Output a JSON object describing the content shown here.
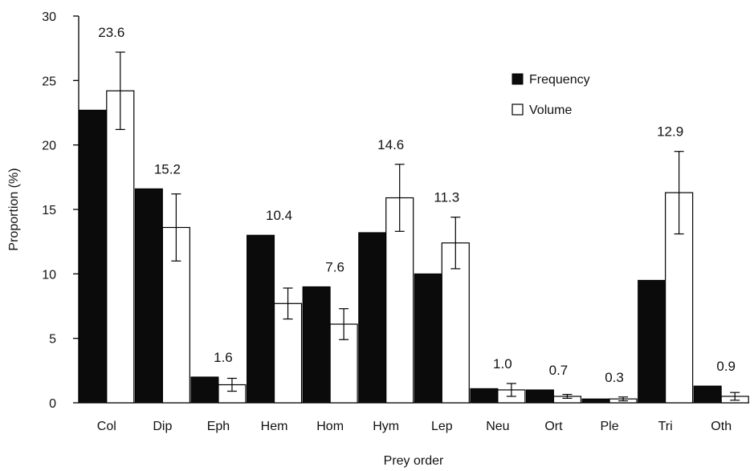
{
  "chart_data": {
    "type": "bar",
    "title": "",
    "xlabel": "Prey order",
    "ylabel": "Proportion (%)",
    "ylim": [
      0,
      30
    ],
    "yticks": [
      0,
      5,
      10,
      15,
      20,
      25,
      30
    ],
    "grid": false,
    "legend_position": "top-right",
    "categories": [
      "Col",
      "Dip",
      "Eph",
      "Hem",
      "Hom",
      "Hym",
      "Lep",
      "Neu",
      "Ort",
      "Ple",
      "Tri",
      "Oth"
    ],
    "series": [
      {
        "name": "Frequency",
        "style": "filled",
        "color": "#0b0b0b",
        "values": [
          22.7,
          16.6,
          2.0,
          13.0,
          9.0,
          13.2,
          10.0,
          1.1,
          1.0,
          0.3,
          9.5,
          1.3
        ]
      },
      {
        "name": "Volume",
        "style": "open",
        "color": "#ffffff",
        "values": [
          24.2,
          13.6,
          1.4,
          7.7,
          6.1,
          15.9,
          12.4,
          1.0,
          0.5,
          0.3,
          16.3,
          0.5
        ],
        "error": [
          3.0,
          2.6,
          0.5,
          1.2,
          1.2,
          2.6,
          2.0,
          0.5,
          0.15,
          0.15,
          3.2,
          0.3
        ]
      }
    ],
    "annotations": [
      "23.6",
      "15.2",
      "1.6",
      "10.4",
      "7.6",
      "14.6",
      "11.3",
      "1.0",
      "0.7",
      "0.3",
      "12.9",
      "0.9"
    ]
  }
}
